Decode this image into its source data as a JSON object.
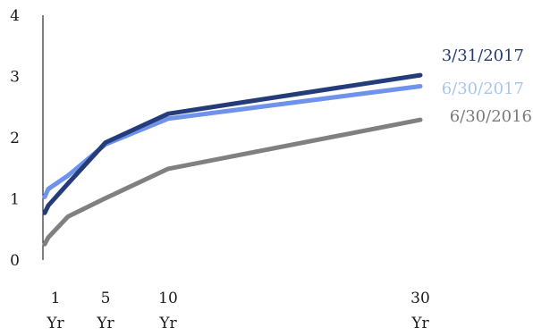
{
  "chart_data": {
    "type": "line",
    "title": "",
    "xlabel": "",
    "ylabel": "",
    "ylim": [
      0,
      4
    ],
    "y_ticks": [
      "0",
      "1",
      "2",
      "3",
      "4"
    ],
    "x_ticks": [
      {
        "x": 1,
        "line1": "1",
        "line2": "Yr"
      },
      {
        "x": 5,
        "line1": "5",
        "line2": "Yr"
      },
      {
        "x": 10,
        "line1": "10",
        "line2": "Yr"
      },
      {
        "x": 30,
        "line1": "30",
        "line2": "Yr"
      }
    ],
    "grid": false,
    "legend": "labels at right end of each line",
    "series": [
      {
        "name": "3/31/2017",
        "color": "#243d7a",
        "points": [
          [
            0.25,
            0.77
          ],
          [
            0.5,
            0.89
          ],
          [
            2,
            1.25
          ],
          [
            5,
            1.92
          ],
          [
            10,
            2.39
          ],
          [
            30,
            3.02
          ]
        ]
      },
      {
        "name": "6/30/2017",
        "color": "#6f93ea",
        "label_color": "#a9c6ea",
        "points": [
          [
            0.25,
            1.03
          ],
          [
            0.5,
            1.16
          ],
          [
            2,
            1.38
          ],
          [
            5,
            1.89
          ],
          [
            10,
            2.31
          ],
          [
            30,
            2.84
          ]
        ]
      },
      {
        "name": "6/30/2016",
        "color": "#808080",
        "label_color": "#7a7a7a",
        "points": [
          [
            0.25,
            0.26
          ],
          [
            0.5,
            0.37
          ],
          [
            2,
            0.71
          ],
          [
            5,
            1.01
          ],
          [
            10,
            1.49
          ],
          [
            30,
            2.29
          ]
        ]
      }
    ]
  }
}
